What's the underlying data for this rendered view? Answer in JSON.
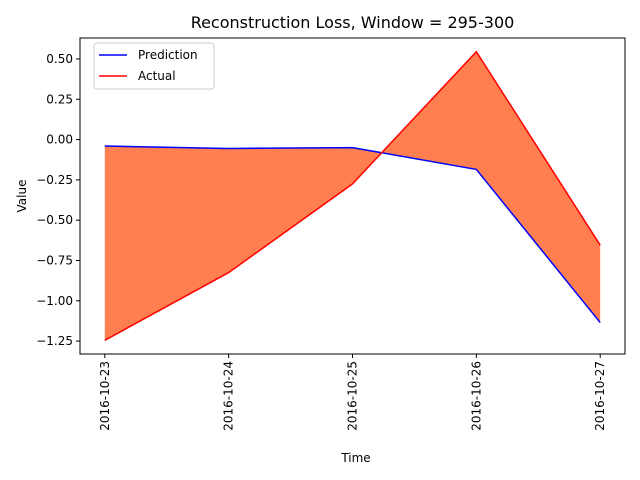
{
  "chart_data": {
    "type": "line",
    "title": "Reconstruction Loss, Window = 295-300",
    "xlabel": "Time",
    "ylabel": "Value",
    "x": [
      "2016-10-23",
      "2016-10-24",
      "2016-10-25",
      "2016-10-26",
      "2016-10-27"
    ],
    "ylim": [
      -1.33,
      0.63
    ],
    "yticks": [
      "0.50",
      "0.25",
      "0.00",
      "−0.25",
      "−0.50",
      "−0.75",
      "−1.00",
      "−1.25"
    ],
    "ytick_values": [
      0.5,
      0.25,
      0.0,
      -0.25,
      -0.5,
      -0.75,
      -1.0,
      -1.25
    ],
    "series": [
      {
        "name": "Prediction",
        "values": [
          -0.04,
          -0.055,
          -0.05,
          -0.185,
          -1.135
        ],
        "color": "#0000ff"
      },
      {
        "name": "Actual",
        "values": [
          -1.245,
          -0.825,
          -0.275,
          0.545,
          -0.655
        ],
        "color": "#ff0000"
      }
    ],
    "fill_between": {
      "color": "#ff7f50"
    },
    "legend_placement": "top-left",
    "grid": false
  }
}
